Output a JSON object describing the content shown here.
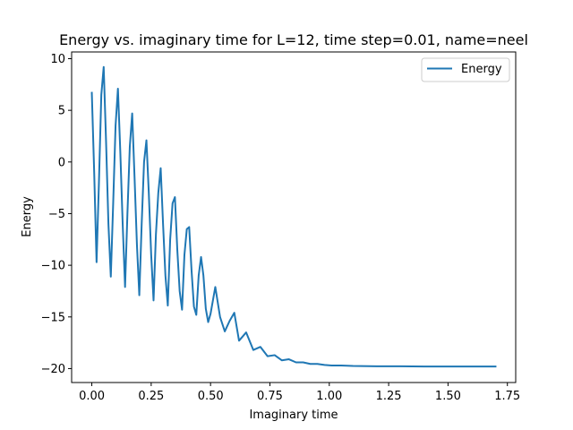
{
  "chart_data": {
    "type": "line",
    "title": "Energy vs. imaginary time for L=12, time step=0.01, name=neel",
    "xlabel": "Imaginary time",
    "ylabel": "Energy",
    "xlim": [
      -0.085,
      1.785
    ],
    "ylim": [
      -21.35,
      10.65
    ],
    "xticks": [
      0.0,
      0.25,
      0.5,
      0.75,
      1.0,
      1.25,
      1.5,
      1.75
    ],
    "xtick_labels": [
      "0.00",
      "0.25",
      "0.50",
      "0.75",
      "1.00",
      "1.25",
      "1.50",
      "1.75"
    ],
    "yticks": [
      10,
      5,
      0,
      -5,
      -10,
      -15,
      -20
    ],
    "ytick_labels": [
      "10",
      "5",
      "0",
      "−5",
      "−10",
      "−15",
      "−20"
    ],
    "grid": false,
    "legend_position": "upper right",
    "series": [
      {
        "name": "Energy",
        "color": "#1f77b4",
        "x": [
          0.0,
          0.01,
          0.02,
          0.03,
          0.04,
          0.05,
          0.06,
          0.07,
          0.08,
          0.09,
          0.1,
          0.11,
          0.12,
          0.13,
          0.14,
          0.15,
          0.16,
          0.17,
          0.18,
          0.19,
          0.2,
          0.21,
          0.22,
          0.23,
          0.24,
          0.25,
          0.26,
          0.27,
          0.28,
          0.29,
          0.3,
          0.31,
          0.32,
          0.33,
          0.34,
          0.35,
          0.36,
          0.37,
          0.38,
          0.39,
          0.4,
          0.41,
          0.42,
          0.43,
          0.44,
          0.45,
          0.46,
          0.47,
          0.48,
          0.49,
          0.5,
          0.52,
          0.54,
          0.56,
          0.58,
          0.6,
          0.62,
          0.65,
          0.68,
          0.71,
          0.74,
          0.77,
          0.8,
          0.83,
          0.86,
          0.89,
          0.92,
          0.95,
          0.98,
          1.01,
          1.05,
          1.1,
          1.2,
          1.3,
          1.4,
          1.5,
          1.6,
          1.7
        ],
        "y": [
          6.7,
          -1.0,
          -9.7,
          -2.0,
          6.5,
          9.2,
          2.0,
          -6.0,
          -11.1,
          -4.0,
          3.5,
          7.1,
          1.0,
          -6.0,
          -12.1,
          -5.0,
          1.5,
          4.7,
          -1.5,
          -8.0,
          -12.9,
          -6.0,
          0.0,
          2.1,
          -3.0,
          -9.0,
          -13.4,
          -7.0,
          -3.0,
          -0.6,
          -6.0,
          -11.0,
          -13.9,
          -7.5,
          -4.0,
          -3.4,
          -8.5,
          -12.5,
          -14.3,
          -9.0,
          -6.5,
          -6.3,
          -10.5,
          -14.0,
          -14.8,
          -11.0,
          -9.2,
          -11.0,
          -14.2,
          -15.5,
          -14.7,
          -12.1,
          -15.0,
          -16.4,
          -15.4,
          -14.6,
          -17.3,
          -16.5,
          -18.2,
          -17.9,
          -18.8,
          -18.7,
          -19.2,
          -19.1,
          -19.4,
          -19.4,
          -19.55,
          -19.55,
          -19.65,
          -19.7,
          -19.7,
          -19.75,
          -19.78,
          -19.78,
          -19.8,
          -19.8,
          -19.8,
          -19.8
        ]
      }
    ]
  }
}
